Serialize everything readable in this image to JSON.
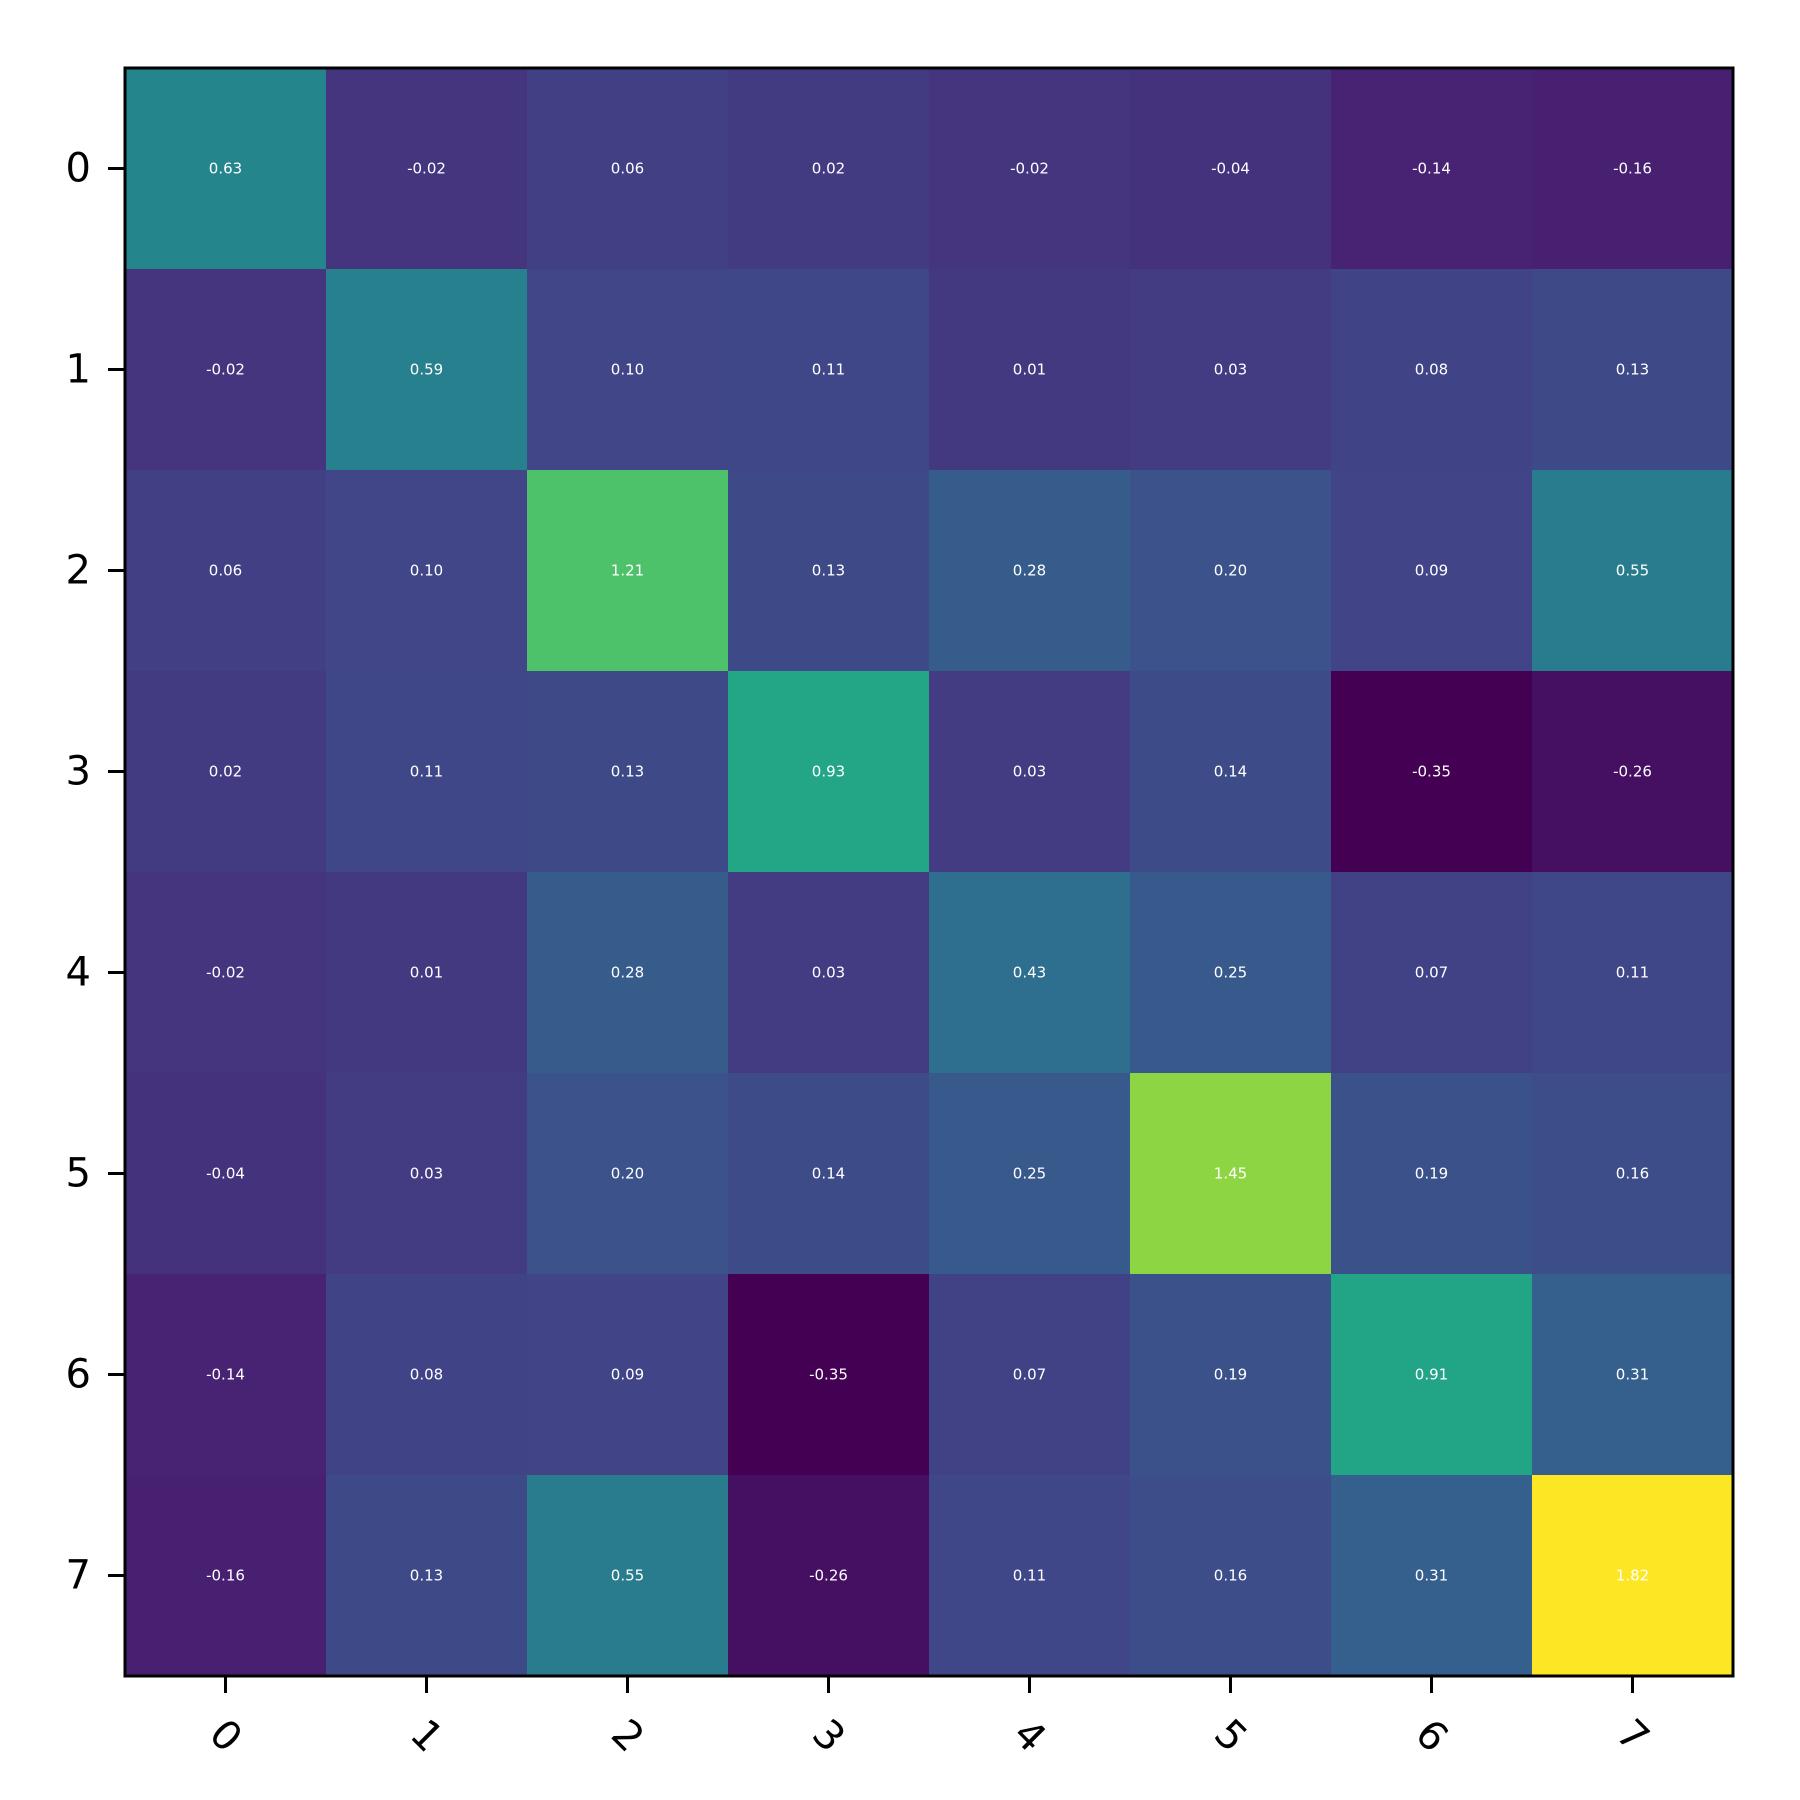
{
  "chart_data": {
    "type": "heatmap",
    "title": "",
    "xlabel": "",
    "ylabel": "",
    "colormap": "viridis",
    "value_range": [
      -0.35,
      1.82
    ],
    "grid": false,
    "x_categories": [
      "0",
      "1",
      "2",
      "3",
      "4",
      "5",
      "6",
      "7"
    ],
    "y_categories": [
      "0",
      "1",
      "2",
      "3",
      "4",
      "5",
      "6",
      "7"
    ],
    "x_tick_rotation_deg": 45,
    "values": [
      [
        0.63,
        -0.02,
        0.06,
        0.02,
        -0.02,
        -0.04,
        -0.14,
        -0.16
      ],
      [
        -0.02,
        0.59,
        0.1,
        0.11,
        0.01,
        0.03,
        0.08,
        0.13
      ],
      [
        0.06,
        0.1,
        1.21,
        0.13,
        0.28,
        0.2,
        0.09,
        0.55
      ],
      [
        0.02,
        0.11,
        0.13,
        0.93,
        0.03,
        0.14,
        -0.35,
        -0.26
      ],
      [
        -0.02,
        0.01,
        0.28,
        0.03,
        0.43,
        0.25,
        0.07,
        0.11
      ],
      [
        -0.04,
        0.03,
        0.2,
        0.14,
        0.25,
        1.45,
        0.19,
        0.16
      ],
      [
        -0.14,
        0.08,
        0.09,
        -0.35,
        0.07,
        0.19,
        0.91,
        0.31
      ],
      [
        -0.16,
        0.13,
        0.55,
        -0.26,
        0.11,
        0.16,
        0.31,
        1.82
      ]
    ],
    "cell_labels": [
      [
        "0.63",
        "-0.02",
        "0.06",
        "0.02",
        "-0.02",
        "-0.04",
        "-0.14",
        "-0.16"
      ],
      [
        "-0.02",
        "0.59",
        "0.10",
        "0.11",
        "0.01",
        "0.03",
        "0.08",
        "0.13"
      ],
      [
        "0.06",
        "0.10",
        "1.21",
        "0.13",
        "0.28",
        "0.20",
        "0.09",
        "0.55"
      ],
      [
        "0.02",
        "0.11",
        "0.13",
        "0.93",
        "0.03",
        "0.14",
        "-0.35",
        "-0.26"
      ],
      [
        "-0.02",
        "0.01",
        "0.28",
        "0.03",
        "0.43",
        "0.25",
        "0.07",
        "0.11"
      ],
      [
        "-0.04",
        "0.03",
        "0.20",
        "0.14",
        "0.25",
        "1.45",
        "0.19",
        "0.16"
      ],
      [
        "-0.14",
        "0.08",
        "0.09",
        "-0.35",
        "0.07",
        "0.19",
        "0.91",
        "0.31"
      ],
      [
        "-0.16",
        "0.13",
        "0.55",
        "-0.26",
        "0.11",
        "0.16",
        "0.31",
        "1.82"
      ]
    ]
  }
}
